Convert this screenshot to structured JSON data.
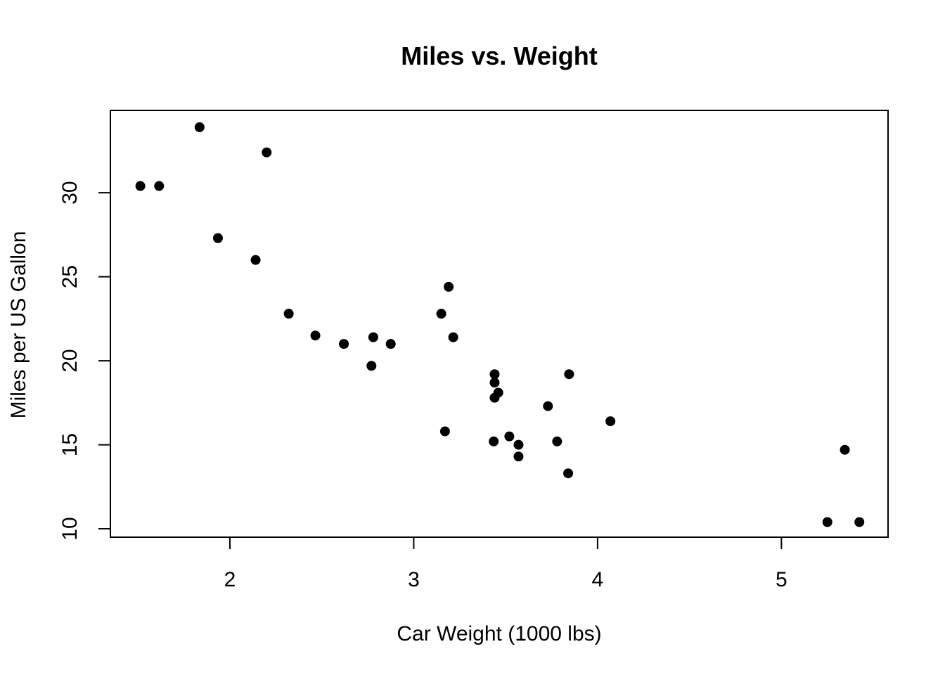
{
  "chart_data": {
    "type": "scatter",
    "title": "Miles vs. Weight",
    "xlabel": "Car Weight (1000 lbs)",
    "ylabel": "Miles per US Gallon",
    "xlim": [
      1.35,
      5.58
    ],
    "ylim": [
      9.5,
      34.9
    ],
    "xticks": [
      2,
      3,
      4,
      5
    ],
    "yticks": [
      10,
      15,
      20,
      25,
      30
    ],
    "grid": false,
    "marker_color": "#000000",
    "series": [
      {
        "points": [
          {
            "x": 2.62,
            "y": 21.0
          },
          {
            "x": 2.875,
            "y": 21.0
          },
          {
            "x": 2.32,
            "y": 22.8
          },
          {
            "x": 3.215,
            "y": 21.4
          },
          {
            "x": 3.44,
            "y": 18.7
          },
          {
            "x": 3.46,
            "y": 18.1
          },
          {
            "x": 3.57,
            "y": 14.3
          },
          {
            "x": 3.19,
            "y": 24.4
          },
          {
            "x": 3.15,
            "y": 22.8
          },
          {
            "x": 3.44,
            "y": 19.2
          },
          {
            "x": 3.44,
            "y": 17.8
          },
          {
            "x": 4.07,
            "y": 16.4
          },
          {
            "x": 3.73,
            "y": 17.3
          },
          {
            "x": 3.78,
            "y": 15.2
          },
          {
            "x": 5.25,
            "y": 10.4
          },
          {
            "x": 5.424,
            "y": 10.4
          },
          {
            "x": 5.345,
            "y": 14.7
          },
          {
            "x": 2.2,
            "y": 32.4
          },
          {
            "x": 1.615,
            "y": 30.4
          },
          {
            "x": 1.835,
            "y": 33.9
          },
          {
            "x": 2.465,
            "y": 21.5
          },
          {
            "x": 3.52,
            "y": 15.5
          },
          {
            "x": 3.435,
            "y": 15.2
          },
          {
            "x": 3.84,
            "y": 13.3
          },
          {
            "x": 3.845,
            "y": 19.2
          },
          {
            "x": 1.935,
            "y": 27.3
          },
          {
            "x": 2.14,
            "y": 26.0
          },
          {
            "x": 1.513,
            "y": 30.4
          },
          {
            "x": 3.17,
            "y": 15.8
          },
          {
            "x": 2.77,
            "y": 19.7
          },
          {
            "x": 3.57,
            "y": 15.0
          },
          {
            "x": 2.78,
            "y": 21.4
          }
        ]
      }
    ]
  }
}
